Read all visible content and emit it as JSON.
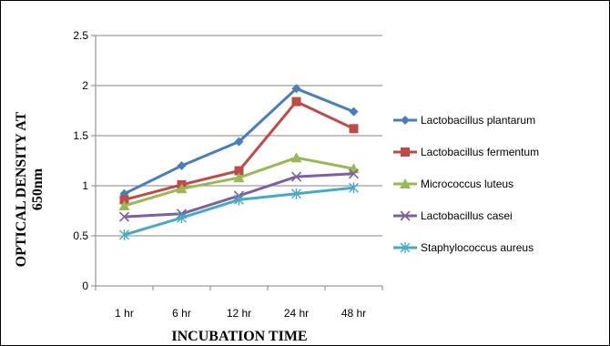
{
  "chart_data": {
    "type": "line",
    "categories": [
      "1 hr",
      "6 hr",
      "12 hr",
      "24 hr",
      "48 hr"
    ],
    "series": [
      {
        "name": "Lactobacillus plantarum",
        "values": [
          0.92,
          1.2,
          1.44,
          1.97,
          1.74
        ],
        "color": "#4a7ebb",
        "marker": "diamond"
      },
      {
        "name": "Lactobacillus fermentum",
        "values": [
          0.86,
          1.01,
          1.15,
          1.84,
          1.57
        ],
        "color": "#be4b48",
        "marker": "square"
      },
      {
        "name": "Micrococcus luteus",
        "values": [
          0.8,
          0.97,
          1.08,
          1.28,
          1.17
        ],
        "color": "#98b954",
        "marker": "triangle"
      },
      {
        "name": "Lactobacillus casei",
        "values": [
          0.69,
          0.72,
          0.9,
          1.09,
          1.12
        ],
        "color": "#7d60a0",
        "marker": "x"
      },
      {
        "name": "Staphylococcus aureus",
        "values": [
          0.51,
          0.68,
          0.86,
          0.92,
          0.98
        ],
        "color": "#46aac5",
        "marker": "asterisk"
      }
    ],
    "xlabel": "INCUBATION TIME",
    "ylabel_lines": [
      "OPTICAL DENSITY AT",
      "650nm"
    ],
    "ylim": [
      0,
      2.5
    ],
    "yticks": [
      "0",
      "0.5",
      "1",
      "1.5",
      "2",
      "2.5"
    ],
    "ytick_values": [
      0,
      0.5,
      1,
      1.5,
      2,
      2.5
    ],
    "grid": true,
    "legend": "right"
  }
}
